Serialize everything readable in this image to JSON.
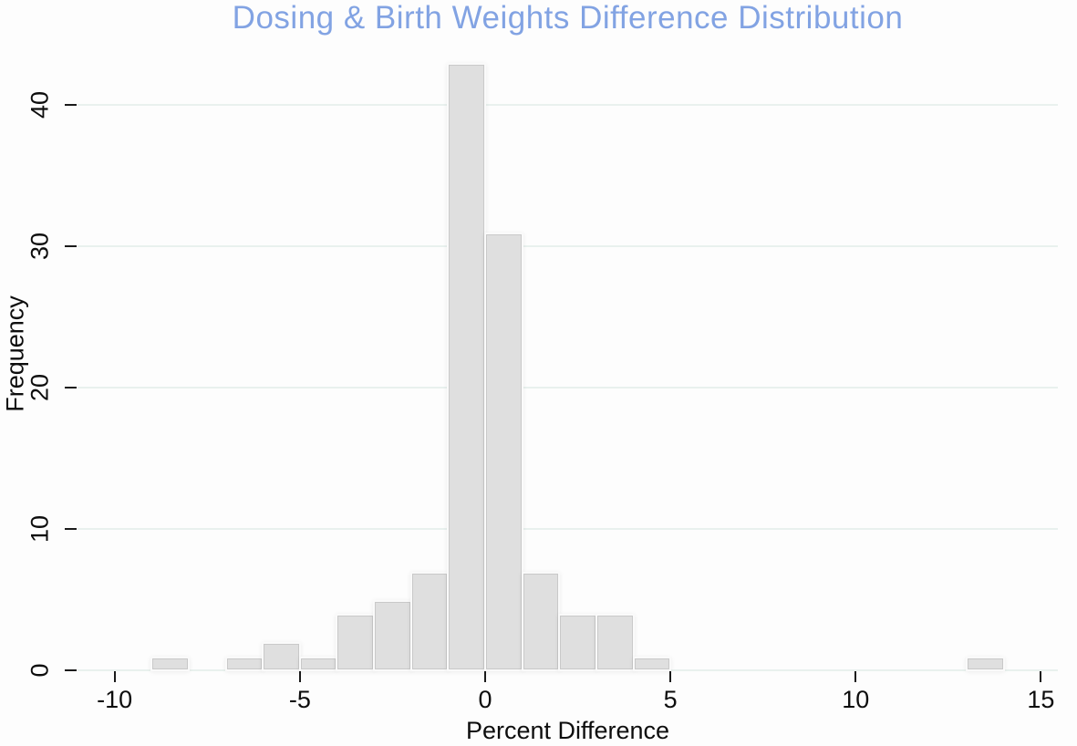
{
  "chart_data": {
    "type": "bar",
    "subtype": "histogram",
    "title": "Dosing & Birth Weights Difference Distribution",
    "xlabel": "Percent Difference",
    "ylabel": "Frequency",
    "bin_width": 1,
    "bins": [
      {
        "start": -9,
        "end": -8,
        "count": 1
      },
      {
        "start": -7,
        "end": -6,
        "count": 1
      },
      {
        "start": -6,
        "end": -5,
        "count": 2
      },
      {
        "start": -5,
        "end": -4,
        "count": 1
      },
      {
        "start": -4,
        "end": -3,
        "count": 4
      },
      {
        "start": -3,
        "end": -2,
        "count": 5
      },
      {
        "start": -2,
        "end": -1,
        "count": 7
      },
      {
        "start": -1,
        "end": 0,
        "count": 43
      },
      {
        "start": 0,
        "end": 1,
        "count": 31
      },
      {
        "start": 1,
        "end": 2,
        "count": 7
      },
      {
        "start": 2,
        "end": 3,
        "count": 4
      },
      {
        "start": 3,
        "end": 4,
        "count": 4
      },
      {
        "start": 4,
        "end": 5,
        "count": 1
      },
      {
        "start": 13,
        "end": 14,
        "count": 1
      }
    ],
    "x_ticks": [
      -10,
      -5,
      0,
      5,
      10,
      15
    ],
    "y_ticks": [
      0,
      10,
      20,
      30,
      40
    ],
    "xlim": [
      -11,
      15.5
    ],
    "ylim": [
      0,
      43.5
    ],
    "grid": "horizontal",
    "legend": "none",
    "colors": {
      "title": "#82a3e3",
      "bar_fill": "#dfdfdf",
      "bar_edge": "#c9c9c9",
      "gridline": "#e9f1ee",
      "tick": "#1a1a1a",
      "text": "#0d0d0d",
      "background": "#fdfdfd"
    }
  }
}
